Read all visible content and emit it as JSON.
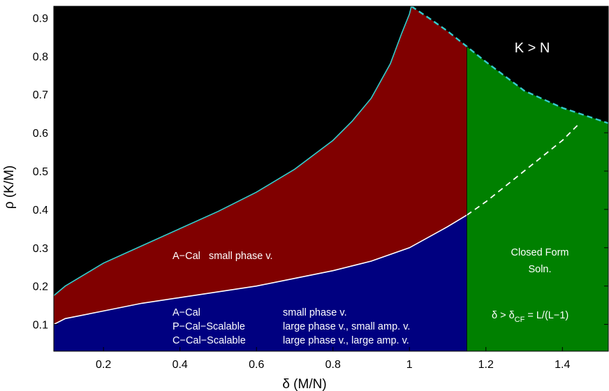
{
  "chart_data": {
    "type": "area",
    "xlabel": "δ (M/N)",
    "ylabel": "ρ (K/M)",
    "xlim": [
      0.07,
      1.52
    ],
    "ylim": [
      0.03,
      0.93
    ],
    "xticks": [
      "0.2",
      "0.4",
      "0.6",
      "0.8",
      "1",
      "1.2",
      "1.4"
    ],
    "xtick_values": [
      0.2,
      0.4,
      0.6,
      0.8,
      1.0,
      1.2,
      1.4
    ],
    "yticks": [
      "0.1",
      "0.2",
      "0.3",
      "0.4",
      "0.5",
      "0.6",
      "0.7",
      "0.8",
      "0.9"
    ],
    "ytick_values": [
      0.1,
      0.2,
      0.3,
      0.4,
      0.5,
      0.6,
      0.7,
      0.8,
      0.9
    ],
    "grid": false,
    "legend": "none",
    "delta_cf": 1.15,
    "curves": {
      "upper_boundary": {
        "x": [
          0.07,
          0.1,
          0.2,
          0.3,
          0.4,
          0.5,
          0.6,
          0.7,
          0.8,
          0.85,
          0.9,
          0.95,
          0.98,
          1.0,
          1.005
        ],
        "y": [
          0.175,
          0.2,
          0.26,
          0.305,
          0.35,
          0.395,
          0.445,
          0.505,
          0.58,
          0.63,
          0.69,
          0.78,
          0.86,
          0.91,
          0.93
        ]
      },
      "k_equals_n": {
        "x": [
          1.005,
          1.05,
          1.1,
          1.15,
          1.2,
          1.3,
          1.4,
          1.52
        ],
        "y": [
          0.93,
          0.9,
          0.865,
          0.825,
          0.785,
          0.71,
          0.665,
          0.625
        ]
      },
      "lower_boundary": {
        "x": [
          0.07,
          0.1,
          0.2,
          0.3,
          0.4,
          0.5,
          0.6,
          0.7,
          0.8,
          0.9,
          1.0,
          1.1,
          1.15
        ],
        "y": [
          0.1,
          0.115,
          0.135,
          0.155,
          0.17,
          0.185,
          0.2,
          0.22,
          0.24,
          0.265,
          0.3,
          0.355,
          0.385
        ]
      },
      "lower_boundary_extrapolated": {
        "x": [
          1.15,
          1.2,
          1.3,
          1.4,
          1.44
        ],
        "y": [
          0.385,
          0.42,
          0.5,
          0.58,
          0.62
        ]
      }
    },
    "regions": [
      {
        "name": "K > N",
        "color": "#000000"
      },
      {
        "name": "A-Cal small phase v.",
        "color": "#800000"
      },
      {
        "name": "A-Cal / P-Cal-Scalable / C-Cal-Scalable",
        "color": "#000080"
      },
      {
        "name": "Closed Form Soln.",
        "color": "#008000"
      }
    ],
    "annotations": {
      "k_gt_n": "K > N",
      "red_region": "A−Cal   small phase v.",
      "blue_rows": [
        {
          "method": "A−Cal",
          "desc": "small phase v."
        },
        {
          "method": "P−Cal−Scalable",
          "desc": "large phase v., small amp. v."
        },
        {
          "method": "C−Cal−Scalable",
          "desc": "large phase v., large amp. v."
        }
      ],
      "closed_form_line1": "Closed Form",
      "closed_form_line2": "Soln.",
      "delta_cf": {
        "main": "δ > δ",
        "sub": "CF",
        "rest": " = L/(L−1)"
      }
    },
    "colors": {
      "black_region": "#000000",
      "red_region": "#800000",
      "blue_region": "#000080",
      "green_region": "#008000",
      "cyan_line": "#33cccc",
      "white_line": "#ffffff"
    }
  }
}
